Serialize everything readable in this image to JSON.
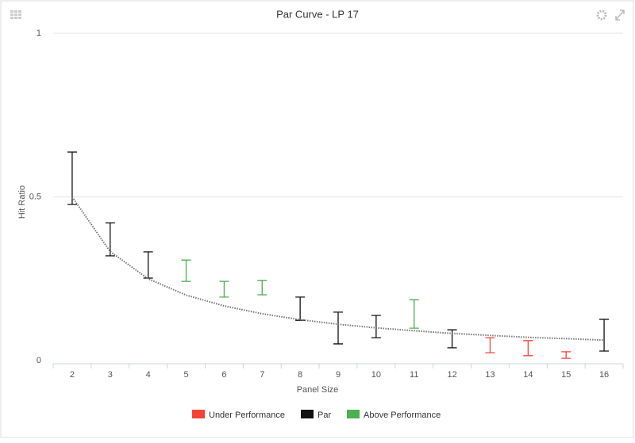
{
  "chart_data": {
    "type": "errorbar",
    "title": "Par Curve - LP 17",
    "x_label": "Panel Size",
    "y_label": "Hit Ratio",
    "categories": [
      "2",
      "3",
      "4",
      "5",
      "6",
      "7",
      "8",
      "9",
      "10",
      "11",
      "12",
      "13",
      "14",
      "15",
      "16"
    ],
    "ylim": [
      0,
      1
    ],
    "yticks": [
      0,
      0.5,
      1
    ],
    "grid": true,
    "par_curve": {
      "color": "#777777",
      "values": [
        0.5,
        0.333,
        0.25,
        0.2,
        0.167,
        0.143,
        0.125,
        0.111,
        0.1,
        0.091,
        0.083,
        0.077,
        0.071,
        0.067,
        0.0625
      ]
    },
    "series": [
      {
        "name": "Under Performance",
        "color": "#f44336",
        "high": [
          null,
          null,
          null,
          null,
          null,
          null,
          null,
          null,
          null,
          null,
          null,
          0.07,
          0.061,
          0.027,
          null
        ],
        "low": [
          null,
          null,
          null,
          null,
          null,
          null,
          null,
          null,
          null,
          null,
          null,
          0.024,
          0.015,
          0.007,
          null
        ]
      },
      {
        "name": "Par",
        "color": "#111111",
        "high": [
          0.637,
          0.421,
          0.332,
          null,
          null,
          null,
          0.194,
          0.148,
          0.138,
          null,
          0.094,
          null,
          null,
          null,
          0.126
        ],
        "low": [
          0.477,
          0.32,
          0.252,
          null,
          null,
          null,
          0.123,
          0.051,
          0.07,
          null,
          0.039,
          null,
          null,
          null,
          0.029
        ]
      },
      {
        "name": "Above Performance",
        "color": "#4caf50",
        "high": [
          null,
          null,
          null,
          0.307,
          0.242,
          0.245,
          null,
          null,
          null,
          0.186,
          null,
          null,
          null,
          null,
          null
        ],
        "low": [
          null,
          null,
          null,
          0.242,
          0.194,
          0.201,
          null,
          null,
          null,
          0.099,
          null,
          null,
          null,
          null,
          null
        ]
      }
    ]
  }
}
